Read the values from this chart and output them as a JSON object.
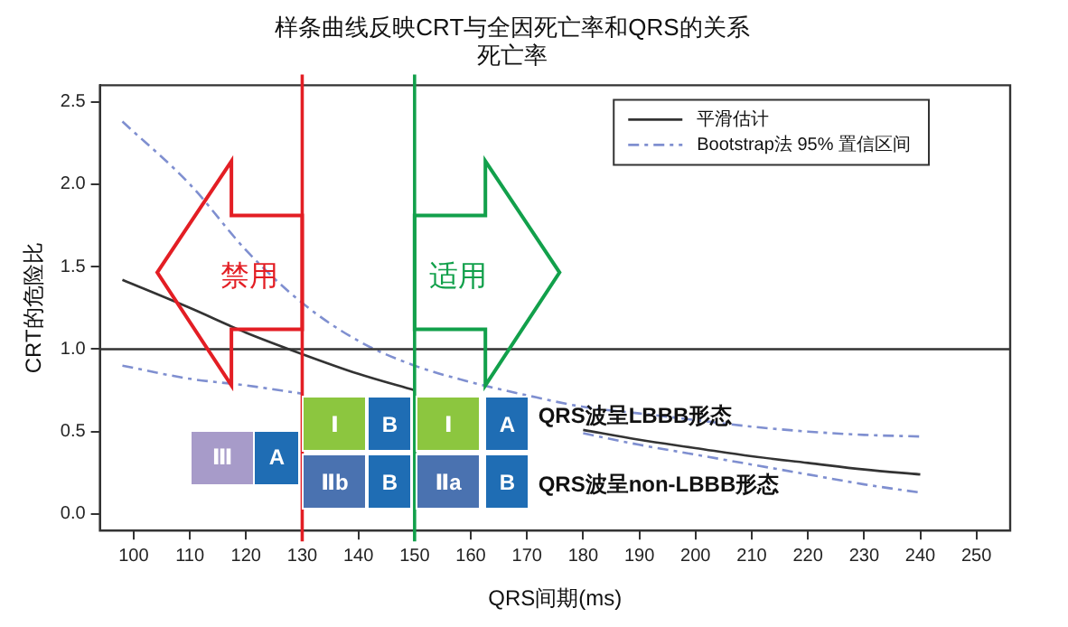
{
  "chart_data": {
    "type": "line",
    "title": "样条曲线反映CRT与全因死亡率和QRS的关系死亡率",
    "xlabel": "QRS间期(ms)",
    "ylabel": "CRT的危险比",
    "x": [
      98,
      110,
      120,
      130,
      140,
      150,
      160,
      170,
      180,
      190,
      200,
      210,
      220,
      230,
      240
    ],
    "series": [
      {
        "name": "平滑估计",
        "color": "#333333",
        "line_style": "solid",
        "values": [
          1.42,
          1.25,
          1.1,
          0.97,
          0.85,
          0.75,
          null,
          null,
          0.51,
          0.45,
          0.4,
          0.35,
          0.31,
          0.27,
          0.24
        ]
      },
      {
        "name": "Bootstrap法 95% 置信区间",
        "color": "#7f8fd0",
        "line_style": "dashed",
        "values": [
          2.38,
          2.0,
          1.6,
          1.28,
          1.05,
          0.9,
          0.8,
          0.72,
          0.65,
          0.61,
          0.57,
          0.53,
          0.5,
          0.48,
          0.47
        ]
      },
      {
        "color": "#7f8fd0",
        "line_style": "dashed",
        "values": [
          0.9,
          0.82,
          0.78,
          0.73,
          null,
          null,
          null,
          null,
          0.49,
          0.42,
          0.36,
          0.3,
          0.24,
          0.18,
          0.13
        ]
      }
    ],
    "xlim": [
      94,
      256
    ],
    "xticks": [
      100,
      110,
      120,
      130,
      140,
      150,
      160,
      170,
      180,
      190,
      200,
      210,
      220,
      230,
      240,
      250
    ],
    "ylim": [
      -0.1,
      2.6
    ],
    "yticks": [
      {
        "value": 0,
        "label": "0.0"
      },
      {
        "value": 0.5,
        "label": "0.5"
      },
      {
        "value": 1,
        "label": "1.0"
      },
      {
        "value": 1.5,
        "label": "1.5"
      },
      {
        "value": 2,
        "label": "2.0"
      },
      {
        "value": 2.5,
        "label": "2.5"
      }
    ],
    "ref_lines": [
      {
        "axis": "y",
        "value": 1,
        "color": "#333333"
      },
      {
        "axis": "x",
        "value": 130,
        "color": "#e31e24"
      },
      {
        "axis": "x",
        "value": 150,
        "color": "#12a04b"
      }
    ],
    "annotations": [
      "禁用",
      "适用",
      "Ⅲ",
      "A",
      "Ⅰ",
      "B",
      "Ⅰ",
      "A",
      "Ⅱb",
      "B",
      "Ⅱa",
      "B",
      "QRS波呈LBBB形态",
      "QRS波呈non-LBBB形态"
    ],
    "grid": false,
    "legend": "top right",
    "marker": "none"
  }
}
